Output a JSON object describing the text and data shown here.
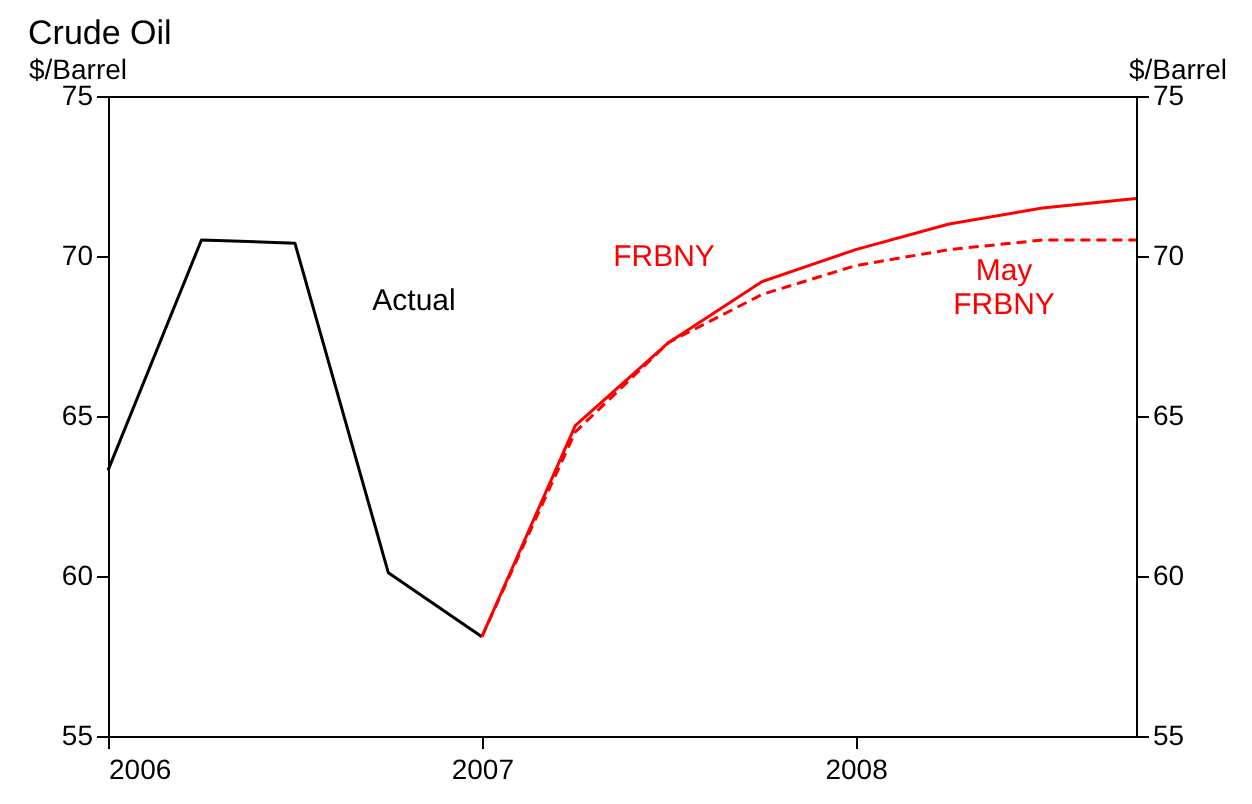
{
  "chart_data": {
    "type": "line",
    "title": "Crude Oil",
    "ylabel": "$/Barrel",
    "y2label": "$/Barrel",
    "x": [
      2006,
      2006.25,
      2006.5,
      2006.75,
      2007,
      2007.25,
      2007.5,
      2007.75,
      2008,
      2008.25,
      2008.5,
      2008.75
    ],
    "series": [
      {
        "name": "Actual",
        "color": "#000000",
        "line_style": "solid",
        "values": [
          63.3,
          70.5,
          70.4,
          60.1,
          58.1,
          null,
          null,
          null,
          null,
          null,
          null,
          null
        ]
      },
      {
        "name": "FRBNY",
        "color": "#ff0000",
        "line_style": "solid",
        "values": [
          null,
          null,
          null,
          null,
          58.1,
          64.7,
          67.3,
          69.2,
          70.2,
          71.0,
          71.5,
          71.8
        ]
      },
      {
        "name": "May\nFRBNY",
        "color": "#ff0000",
        "line_style": "dashed",
        "values": [
          null,
          null,
          null,
          null,
          58.1,
          64.5,
          67.3,
          68.8,
          69.7,
          70.2,
          70.5,
          70.5
        ]
      }
    ],
    "xlim": [
      2006,
      2008.75
    ],
    "xticks": [
      2006,
      2007,
      2008
    ],
    "ylim": [
      55,
      75
    ],
    "yticks": [
      55,
      60,
      65,
      70,
      75
    ],
    "y2lim": [
      55,
      75
    ],
    "y2ticks": [
      55,
      60,
      65,
      70,
      75
    ],
    "grid": false,
    "legend": false,
    "marker": "none"
  }
}
